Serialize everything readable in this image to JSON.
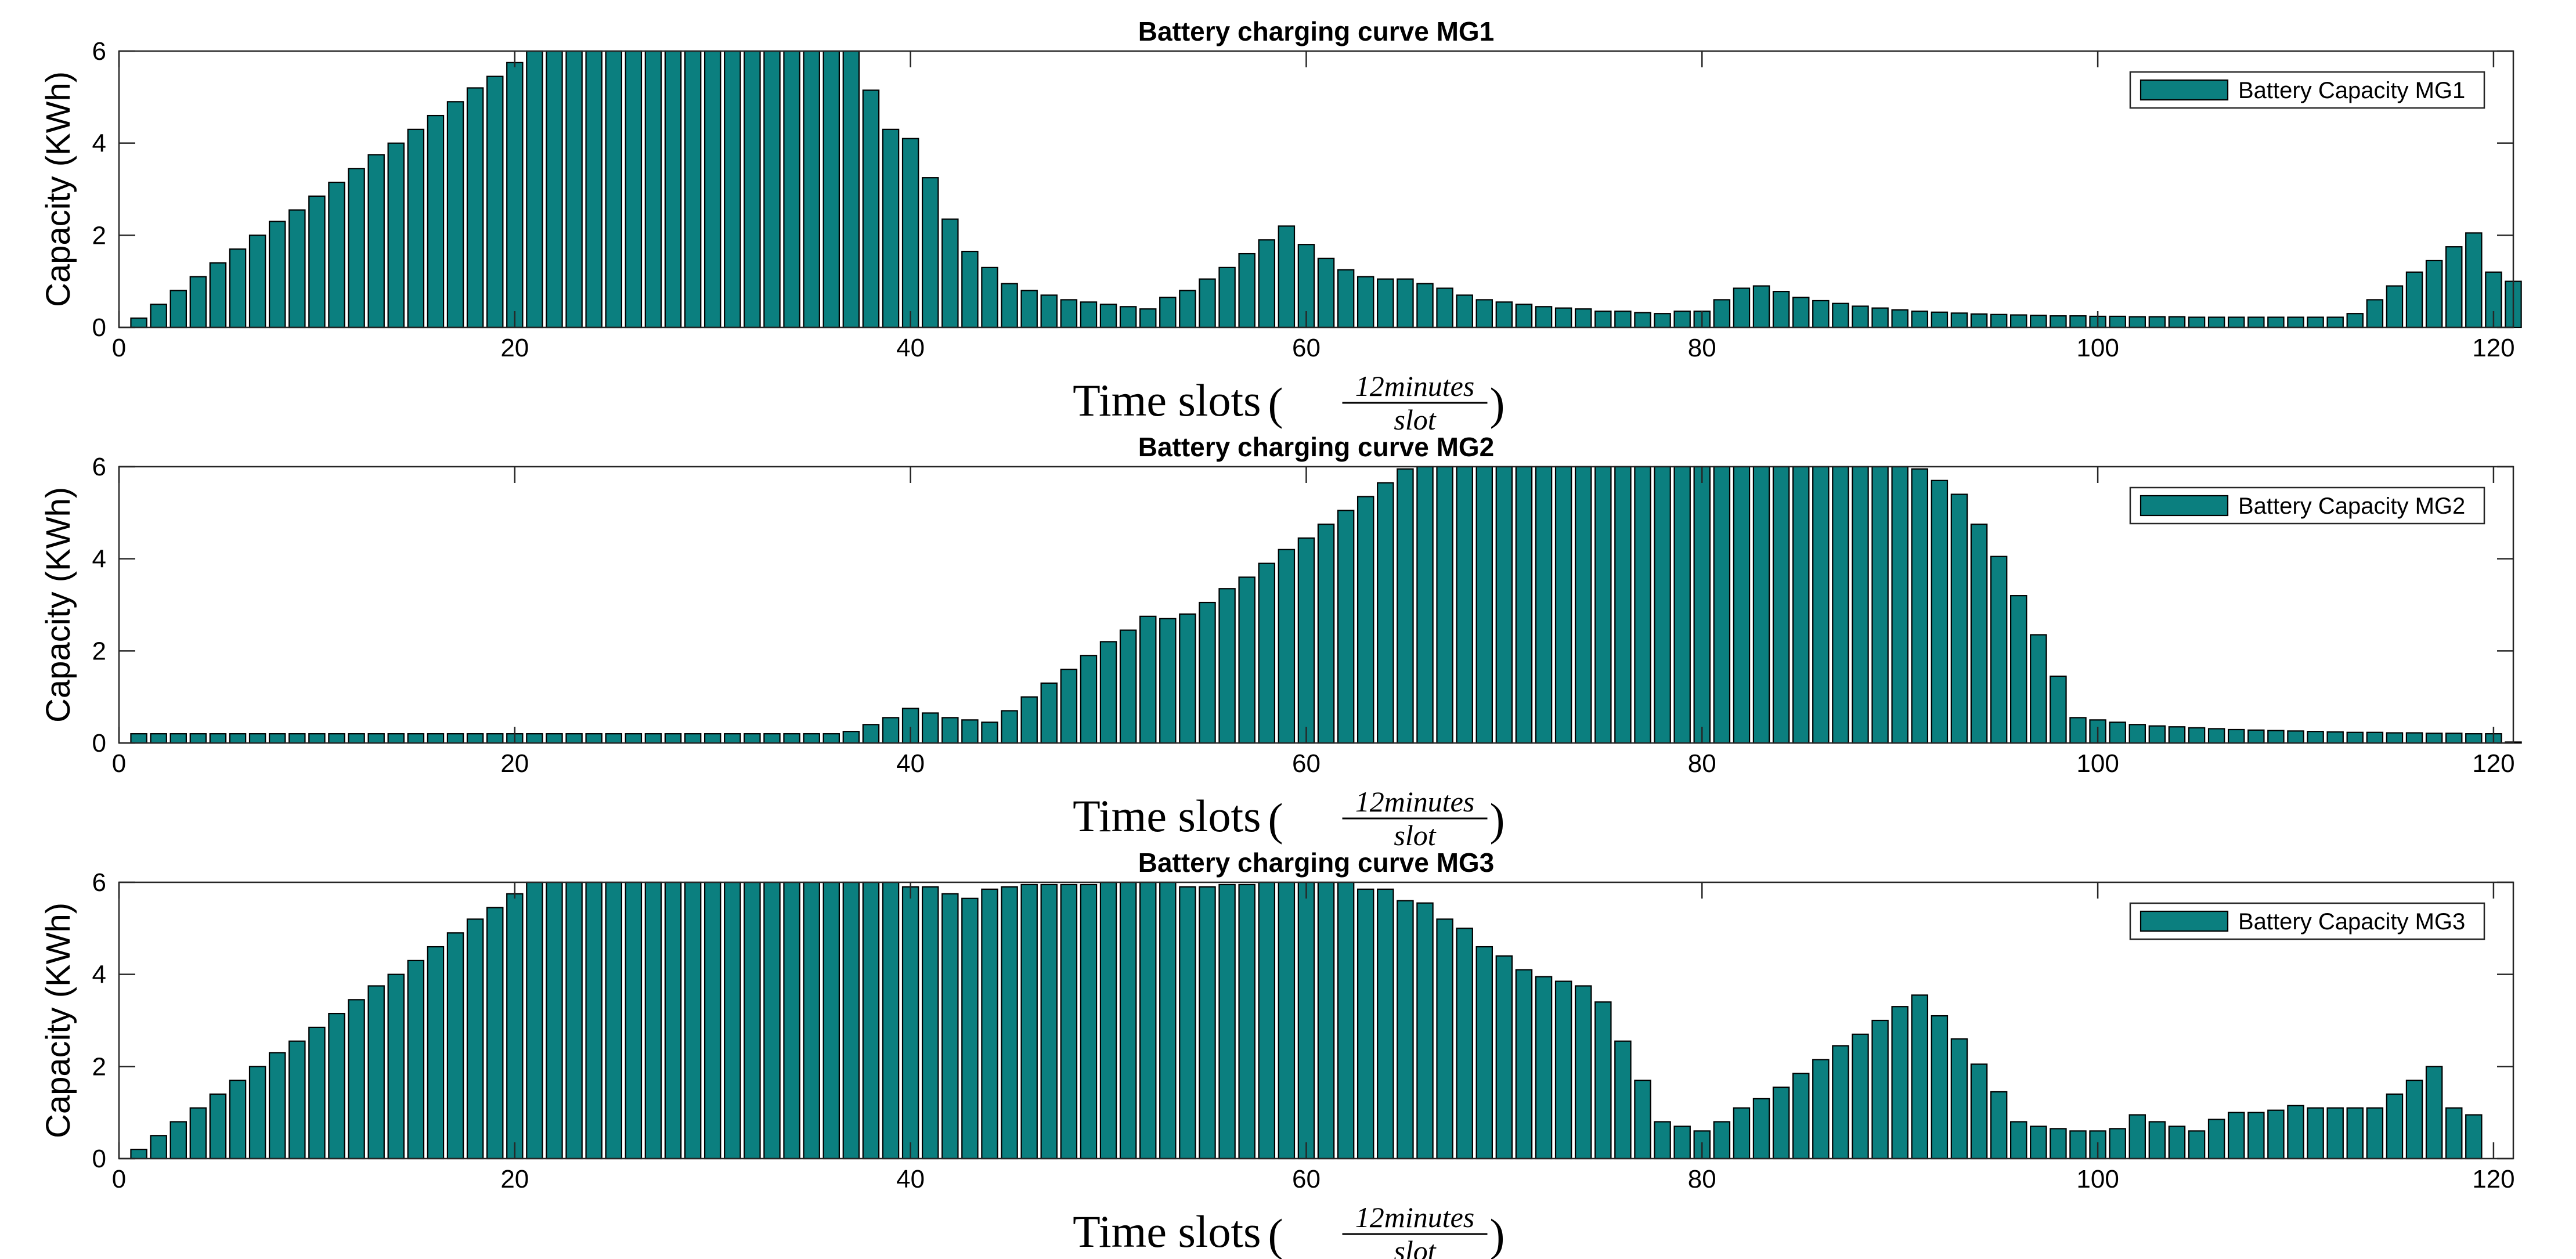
{
  "chart_data": [
    {
      "type": "bar",
      "title": "Battery charging curve MG1",
      "ylabel": "Capacity (KWh)",
      "xlabel": "Time slots",
      "xlabel_unit_numerator": "12minutes",
      "xlabel_unit_denominator": "slot",
      "legend": "Battery Capacity MG1",
      "legend_position": "top-right",
      "xlim": [
        0,
        121
      ],
      "ylim": [
        0,
        6
      ],
      "xticks": [
        0,
        20,
        40,
        60,
        80,
        100,
        120
      ],
      "yticks": [
        0,
        2,
        4,
        6
      ],
      "bar_color": "#0b7f7f",
      "x_start": 1,
      "values": [
        0.2,
        0.5,
        0.8,
        1.1,
        1.4,
        1.7,
        2.0,
        2.3,
        2.55,
        2.85,
        3.15,
        3.45,
        3.75,
        4.0,
        4.3,
        4.6,
        4.9,
        5.2,
        5.45,
        5.75,
        6,
        6,
        6,
        6,
        6,
        6,
        6,
        6,
        6,
        6,
        6,
        6,
        6,
        6,
        6,
        6,
        6,
        5.15,
        4.3,
        4.1,
        3.25,
        2.35,
        1.65,
        1.3,
        0.95,
        0.8,
        0.7,
        0.6,
        0.55,
        0.5,
        0.45,
        0.4,
        0.65,
        0.8,
        1.05,
        1.3,
        1.6,
        1.9,
        2.2,
        1.8,
        1.5,
        1.25,
        1.1,
        1.05,
        1.05,
        0.95,
        0.85,
        0.7,
        0.6,
        0.55,
        0.5,
        0.45,
        0.42,
        0.4,
        0.35,
        0.35,
        0.32,
        0.3,
        0.35,
        0.35,
        0.6,
        0.85,
        0.9,
        0.78,
        0.65,
        0.58,
        0.52,
        0.46,
        0.42,
        0.38,
        0.35,
        0.33,
        0.31,
        0.29,
        0.28,
        0.27,
        0.26,
        0.25,
        0.25,
        0.24,
        0.24,
        0.23,
        0.23,
        0.23,
        0.22,
        0.22,
        0.22,
        0.22,
        0.22,
        0.22,
        0.22,
        0.22,
        0.3,
        0.6,
        0.9,
        1.2,
        1.45,
        1.75,
        2.05,
        1.2,
        1.0
      ]
    },
    {
      "type": "bar",
      "title": "Battery charging curve MG2",
      "ylabel": "Capacity (KWh)",
      "xlabel": "Time slots",
      "xlabel_unit_numerator": "12minutes",
      "xlabel_unit_denominator": "slot",
      "legend": "Battery Capacity MG2",
      "legend_position": "top-right",
      "xlim": [
        0,
        121
      ],
      "ylim": [
        0,
        6
      ],
      "xticks": [
        0,
        20,
        40,
        60,
        80,
        100,
        120
      ],
      "yticks": [
        0,
        2,
        4,
        6
      ],
      "bar_color": "#0b7f7f",
      "x_start": 1,
      "values": [
        0.2,
        0.2,
        0.2,
        0.2,
        0.2,
        0.2,
        0.2,
        0.2,
        0.2,
        0.2,
        0.2,
        0.2,
        0.2,
        0.2,
        0.2,
        0.2,
        0.2,
        0.2,
        0.2,
        0.2,
        0.2,
        0.2,
        0.2,
        0.2,
        0.2,
        0.2,
        0.2,
        0.2,
        0.2,
        0.2,
        0.2,
        0.2,
        0.2,
        0.2,
        0.2,
        0.2,
        0.25,
        0.4,
        0.55,
        0.75,
        0.65,
        0.55,
        0.5,
        0.45,
        0.7,
        1.0,
        1.3,
        1.6,
        1.9,
        2.2,
        2.45,
        2.75,
        2.7,
        2.8,
        3.05,
        3.35,
        3.6,
        3.9,
        4.2,
        4.45,
        4.75,
        5.05,
        5.35,
        5.65,
        5.95,
        6,
        6,
        6,
        6,
        6,
        6,
        6,
        6,
        6,
        6,
        6,
        6,
        6,
        6,
        6,
        6,
        6,
        6,
        6,
        6,
        6,
        6,
        6,
        6,
        6,
        5.95,
        5.7,
        5.4,
        4.75,
        4.05,
        3.2,
        2.35,
        1.45,
        0.55,
        0.5,
        0.45,
        0.4,
        0.37,
        0.35,
        0.33,
        0.31,
        0.29,
        0.28,
        0.27,
        0.26,
        0.25,
        0.24,
        0.23,
        0.23,
        0.22,
        0.22,
        0.21,
        0.21,
        0.2,
        0.2,
        0.02
      ]
    },
    {
      "type": "bar",
      "title": "Battery charging curve MG3",
      "ylabel": "Capacity (KWh)",
      "xlabel": "Time slots",
      "xlabel_unit_numerator": "12minutes",
      "xlabel_unit_denominator": "slot",
      "legend": "Battery Capacity MG3",
      "legend_position": "top-right",
      "xlim": [
        0,
        121
      ],
      "ylim": [
        0,
        6
      ],
      "xticks": [
        0,
        20,
        40,
        60,
        80,
        100,
        120
      ],
      "yticks": [
        0,
        2,
        4,
        6
      ],
      "bar_color": "#0b7f7f",
      "x_start": 1,
      "values": [
        0.2,
        0.5,
        0.8,
        1.1,
        1.4,
        1.7,
        2.0,
        2.3,
        2.55,
        2.85,
        3.15,
        3.45,
        3.75,
        4.0,
        4.3,
        4.6,
        4.9,
        5.2,
        5.45,
        5.75,
        6,
        6,
        6,
        6,
        6,
        6,
        6,
        6,
        6,
        6,
        6,
        6,
        6,
        6,
        6,
        6,
        6,
        6,
        6,
        5.9,
        5.9,
        5.75,
        5.65,
        5.85,
        5.9,
        5.95,
        5.95,
        5.95,
        5.95,
        6,
        6,
        6,
        6,
        5.9,
        5.9,
        5.95,
        5.95,
        6,
        6,
        6,
        6,
        6,
        5.85,
        5.85,
        5.6,
        5.55,
        5.2,
        5.0,
        4.6,
        4.4,
        4.1,
        3.95,
        3.85,
        3.75,
        3.4,
        2.55,
        1.7,
        0.8,
        0.7,
        0.6,
        0.8,
        1.1,
        1.3,
        1.55,
        1.85,
        2.15,
        2.45,
        2.7,
        3.0,
        3.3,
        3.55,
        3.1,
        2.6,
        2.05,
        1.45,
        0.8,
        0.7,
        0.65,
        0.6,
        0.6,
        0.65,
        0.95,
        0.8,
        0.7,
        0.6,
        0.85,
        1.0,
        1.0,
        1.05,
        1.15,
        1.1,
        1.1,
        1.1,
        1.1,
        1.4,
        1.7,
        2.0,
        1.1,
        0.95
      ]
    }
  ]
}
